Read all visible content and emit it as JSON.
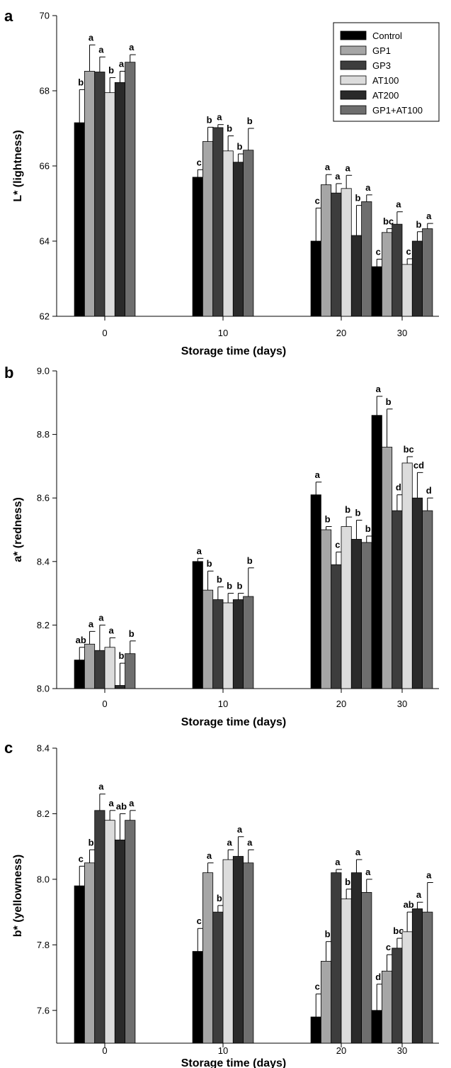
{
  "legend": [
    "Control",
    "GP1",
    "GP3",
    "AT100",
    "AT200",
    "GP1+AT100"
  ],
  "colors": [
    "#000000",
    "#a6a6a6",
    "#3d3d3d",
    "#dcdcdc",
    "#2a2a2a",
    "#6e6e6e"
  ],
  "chart_data": [
    {
      "type": "bar",
      "panel": "a",
      "categories": [
        "0",
        "10",
        "20",
        "30"
      ],
      "xlabel": "Storage time (days)",
      "ylabel": "L* (lightness)",
      "ylim": [
        62,
        70
      ],
      "yticks": [
        "62",
        "64",
        "66",
        "68",
        "70"
      ],
      "legend_position": "top-right",
      "series": [
        {
          "name": "Control",
          "values": [
            67.15,
            65.7,
            64.0,
            63.32
          ],
          "errors": [
            0.88,
            0.2,
            0.88,
            0.2
          ],
          "letters": [
            "b",
            "c",
            "c",
            "c"
          ]
        },
        {
          "name": "GP1",
          "values": [
            68.52,
            66.65,
            65.5,
            64.23
          ],
          "errors": [
            0.7,
            0.38,
            0.27,
            0.1
          ],
          "letters": [
            "a",
            "b",
            "a",
            "bc"
          ]
        },
        {
          "name": "GP3",
          "values": [
            68.5,
            67.02,
            65.28,
            64.45
          ],
          "errors": [
            0.4,
            0.08,
            0.25,
            0.33
          ],
          "letters": [
            "a",
            "a",
            "a",
            "a"
          ]
        },
        {
          "name": "AT100",
          "values": [
            67.95,
            66.4,
            65.4,
            63.38
          ],
          "errors": [
            0.4,
            0.4,
            0.35,
            0.15
          ],
          "letters": [
            "b",
            "b",
            "a",
            "c"
          ]
        },
        {
          "name": "AT200",
          "values": [
            68.22,
            66.1,
            64.15,
            64.0
          ],
          "errors": [
            0.3,
            0.22,
            0.8,
            0.25
          ],
          "letters": [
            "a",
            "b",
            "b",
            "b"
          ]
        },
        {
          "name": "GP1+AT100",
          "values": [
            68.76,
            66.42,
            65.05,
            64.33
          ],
          "errors": [
            0.2,
            0.58,
            0.18,
            0.14
          ],
          "letters": [
            "a",
            "b",
            "a",
            "a"
          ]
        }
      ]
    },
    {
      "type": "bar",
      "panel": "b",
      "categories": [
        "0",
        "10",
        "20",
        "30"
      ],
      "xlabel": "Storage time (days)",
      "ylabel": "a* (redness)",
      "ylim": [
        8.0,
        9.0
      ],
      "yticks": [
        "8.0",
        "8.2",
        "8.4",
        "8.6",
        "8.8",
        "9.0"
      ],
      "series": [
        {
          "name": "Control",
          "values": [
            8.09,
            8.4,
            8.61,
            8.86
          ],
          "errors": [
            0.04,
            0.01,
            0.04,
            0.06
          ],
          "letters": [
            "ab",
            "a",
            "a",
            "a"
          ]
        },
        {
          "name": "GP1",
          "values": [
            8.14,
            8.31,
            8.5,
            8.76
          ],
          "errors": [
            0.04,
            0.06,
            0.01,
            0.12
          ],
          "letters": [
            "a",
            "b",
            "b",
            "b"
          ]
        },
        {
          "name": "GP3",
          "values": [
            8.12,
            8.28,
            8.39,
            8.56
          ],
          "errors": [
            0.08,
            0.04,
            0.04,
            0.05
          ],
          "letters": [
            "a",
            "b",
            "c",
            "d"
          ]
        },
        {
          "name": "AT100",
          "values": [
            8.13,
            8.27,
            8.51,
            8.71
          ],
          "errors": [
            0.03,
            0.03,
            0.03,
            0.02
          ],
          "letters": [
            "a",
            "b",
            "b",
            "bc"
          ]
        },
        {
          "name": "AT200",
          "values": [
            8.01,
            8.28,
            8.47,
            8.6
          ],
          "errors": [
            0.07,
            0.02,
            0.06,
            0.08
          ],
          "letters": [
            "b",
            "b",
            "b",
            "cd"
          ]
        },
        {
          "name": "GP1+AT100",
          "values": [
            8.11,
            8.29,
            8.46,
            8.56
          ],
          "errors": [
            0.04,
            0.09,
            0.02,
            0.04
          ],
          "letters": [
            "b",
            "b",
            "b",
            "d"
          ]
        }
      ]
    },
    {
      "type": "bar",
      "panel": "c",
      "categories": [
        "0",
        "10",
        "20",
        "30"
      ],
      "xlabel": "Storage time (days)",
      "ylabel": "b* (yellowness)",
      "ylim": [
        7.5,
        8.4
      ],
      "yticks": [
        "7.6",
        "7.8",
        "8.0",
        "8.2",
        "8.4"
      ],
      "series": [
        {
          "name": "Control",
          "values": [
            7.98,
            7.78,
            7.58,
            7.6
          ],
          "errors": [
            0.06,
            0.07,
            0.07,
            0.08
          ],
          "letters": [
            "c",
            "c",
            "c",
            "d"
          ]
        },
        {
          "name": "GP1",
          "values": [
            8.05,
            8.02,
            7.75,
            7.72
          ],
          "errors": [
            0.04,
            0.03,
            0.06,
            0.05
          ],
          "letters": [
            "b",
            "a",
            "b",
            "c"
          ]
        },
        {
          "name": "GP3",
          "values": [
            8.21,
            7.9,
            8.02,
            7.79
          ],
          "errors": [
            0.05,
            0.02,
            0.01,
            0.03
          ],
          "letters": [
            "a",
            "b",
            "a",
            "bc"
          ]
        },
        {
          "name": "AT100",
          "values": [
            8.18,
            8.06,
            7.94,
            7.84
          ],
          "errors": [
            0.03,
            0.03,
            0.03,
            0.06
          ],
          "letters": [
            "a",
            "a",
            "b",
            "ab"
          ]
        },
        {
          "name": "AT200",
          "values": [
            8.12,
            8.07,
            8.02,
            7.91
          ],
          "errors": [
            0.08,
            0.06,
            0.04,
            0.02
          ],
          "letters": [
            "ab",
            "a",
            "a",
            "a"
          ]
        },
        {
          "name": "GP1+AT100",
          "values": [
            8.18,
            8.05,
            7.96,
            7.9
          ],
          "errors": [
            0.03,
            0.04,
            0.04,
            0.09
          ],
          "letters": [
            "a",
            "a",
            "a",
            "a"
          ]
        }
      ]
    }
  ]
}
